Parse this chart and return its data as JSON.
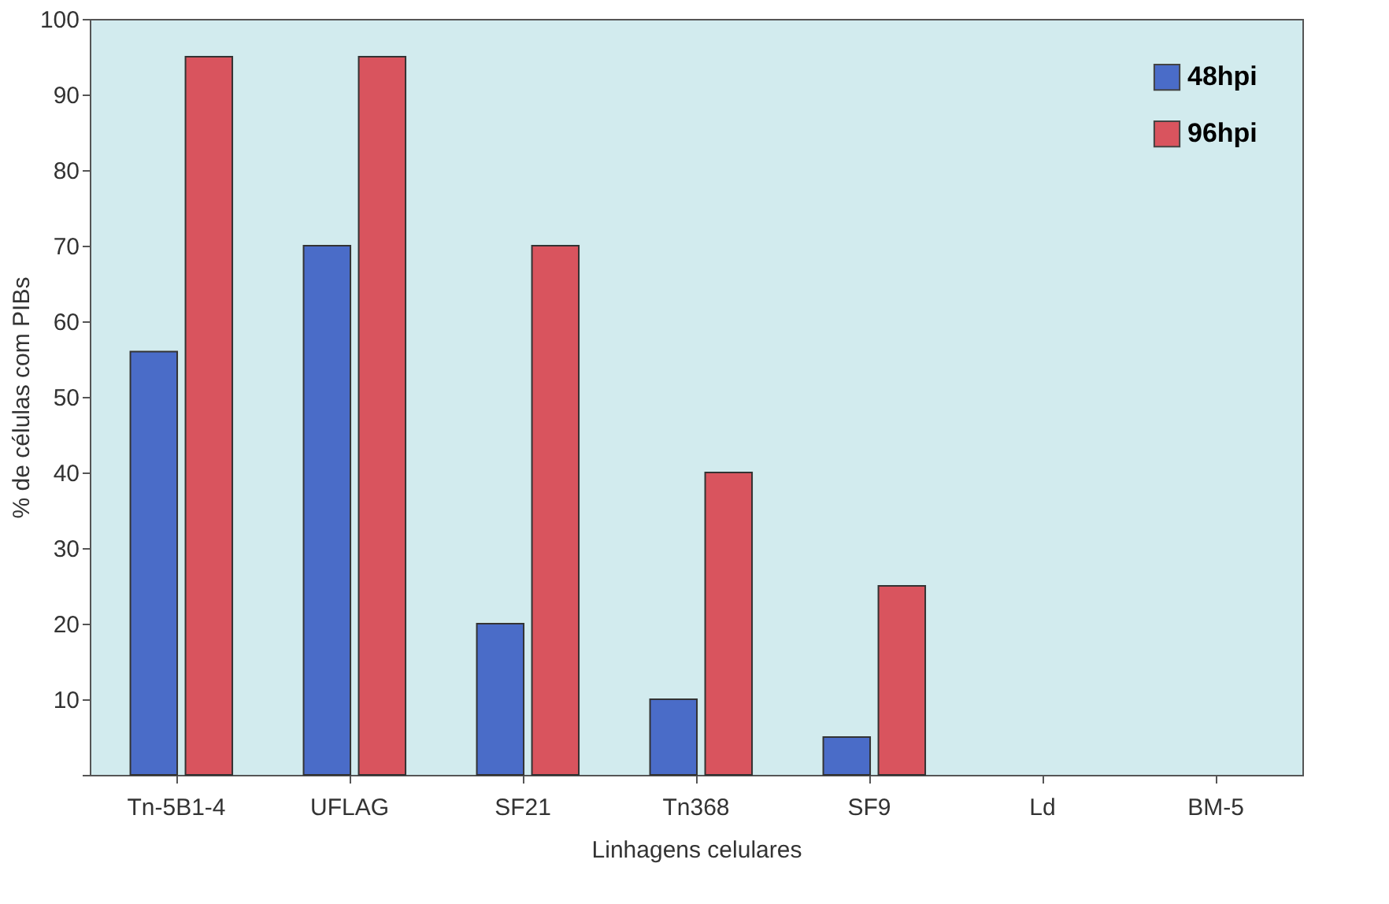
{
  "chart_data": {
    "type": "bar",
    "xlabel": "Linhagens   celulares",
    "ylabel": "% de células com PIBs",
    "categories": [
      "Tn-5B1-4",
      "UFLAG",
      "SF21",
      "Tn368",
      "SF9",
      "Ld",
      "BM-5"
    ],
    "series": [
      {
        "name": "48hpi",
        "color": "#4a6cc8",
        "values": [
          56,
          70,
          20,
          10,
          5,
          null,
          null
        ]
      },
      {
        "name": "96hpi",
        "color": "#d9545e",
        "values": [
          95,
          95,
          70,
          40,
          25,
          null,
          null
        ]
      }
    ],
    "ylim": [
      0,
      100
    ],
    "yticks": [
      {
        "value": 0,
        "label": null
      },
      10,
      20,
      30,
      40,
      50,
      60,
      70,
      80,
      90,
      100
    ],
    "grid": false,
    "legend": "top right"
  }
}
